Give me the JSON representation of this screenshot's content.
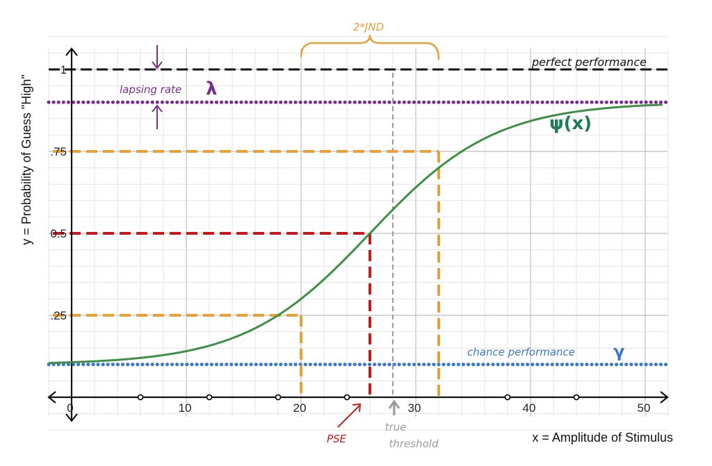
{
  "chart_data": {
    "type": "line",
    "xlabel": "x = Amplitude of Stimulus",
    "ylabel": "y = Probability of Guess \"High\"",
    "xlim": [
      -2,
      52
    ],
    "ylim": [
      -0.1,
      1.1
    ],
    "x_ticks": [
      0,
      10,
      20,
      30,
      40,
      50
    ],
    "x_tick_labels": [
      "0",
      "10",
      "20",
      "30",
      "40",
      "50"
    ],
    "y_ticks": [
      1,
      0.75,
      0.5,
      0.25
    ],
    "y_tick_labels": [
      "1",
      ".75",
      "0.5",
      ".25"
    ],
    "grid": true,
    "series": [
      {
        "name": "ψ(x)",
        "function": "psychometric",
        "guess_rate": 0.1,
        "lapse_rate": 0.1,
        "pse": 26,
        "slope": 0.183,
        "color": "#3d8f45"
      }
    ],
    "reference_lines": {
      "perfect": {
        "y": 1.0,
        "label": "perfect performance",
        "color": "#111111"
      },
      "lapse": {
        "y": 0.9,
        "label": "lapsing rate",
        "symbol": "λ",
        "color": "#7a2d8c"
      },
      "chance": {
        "y": 0.1,
        "label": "chance performance",
        "symbol": "γ",
        "color": "#3a78c4"
      }
    },
    "markers": {
      "q25": {
        "x": 20,
        "y": 0.25,
        "color": "#e8a03a"
      },
      "pse": {
        "x": 26,
        "y": 0.5,
        "label": "PSE",
        "color": "#c41a1a"
      },
      "q75": {
        "x": 32,
        "y": 0.75,
        "color": "#e8a03a"
      },
      "true_threshold": {
        "x": 28,
        "label_lines": [
          "true",
          "threshold"
        ],
        "color": "#9a9a9a"
      },
      "jnd": {
        "label": "2*JND",
        "from": 20,
        "to": 32,
        "color": "#e8a03a"
      }
    },
    "x_axis_points": [
      6,
      12,
      18,
      24,
      38,
      44
    ]
  }
}
